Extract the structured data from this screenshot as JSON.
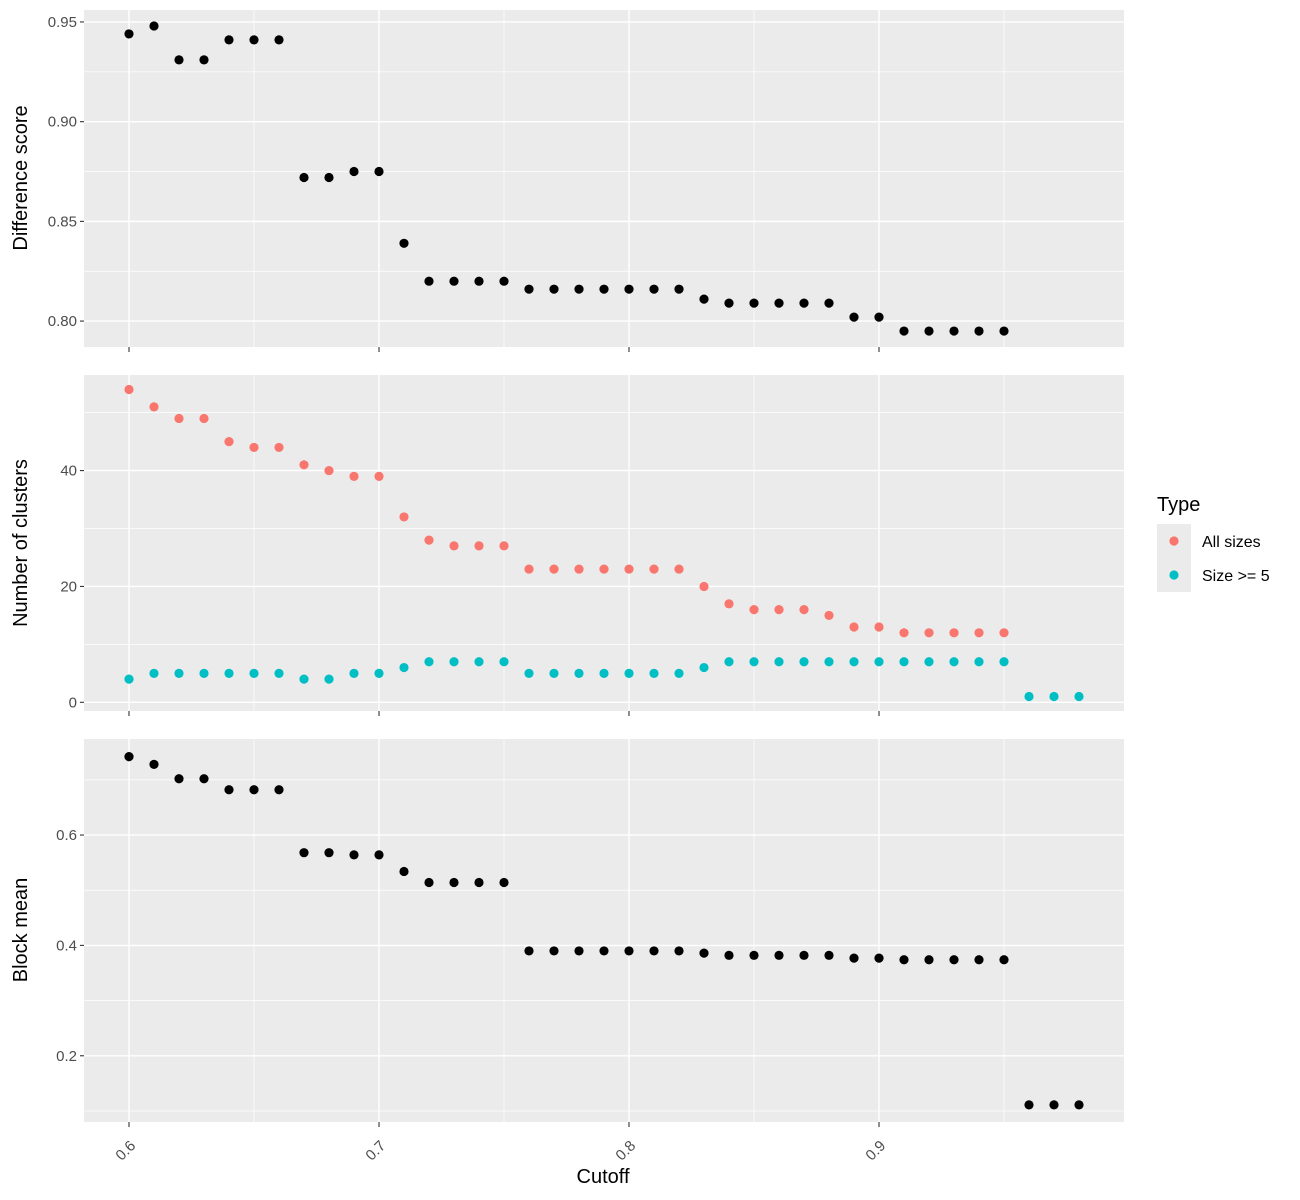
{
  "chart_data": [
    {
      "type": "scatter",
      "panel": "top",
      "ylabel": "Difference score",
      "xlim": [
        0.582,
        0.998
      ],
      "ylim": [
        0.787,
        0.956
      ],
      "y_ticks": [
        "0.80",
        "0.85",
        "0.90",
        "0.95"
      ],
      "grid": true,
      "series": [
        {
          "color": "#000000",
          "x": [
            0.6,
            0.61,
            0.62,
            0.63,
            0.64,
            0.65,
            0.66,
            0.67,
            0.68,
            0.69,
            0.7,
            0.71,
            0.72,
            0.73,
            0.74,
            0.75,
            0.76,
            0.77,
            0.78,
            0.79,
            0.8,
            0.81,
            0.82,
            0.83,
            0.84,
            0.85,
            0.86,
            0.87,
            0.88,
            0.89,
            0.9,
            0.91,
            0.92,
            0.93,
            0.94,
            0.95
          ],
          "y": [
            0.944,
            0.948,
            0.931,
            0.931,
            0.941,
            0.941,
            0.941,
            0.872,
            0.872,
            0.875,
            0.875,
            0.839,
            0.82,
            0.82,
            0.82,
            0.82,
            0.816,
            0.816,
            0.816,
            0.816,
            0.816,
            0.816,
            0.816,
            0.811,
            0.809,
            0.809,
            0.809,
            0.809,
            0.809,
            0.802,
            0.802,
            0.795,
            0.795,
            0.795,
            0.795,
            0.795
          ]
        }
      ]
    },
    {
      "type": "scatter",
      "panel": "middle",
      "ylabel": "Number of clusters",
      "xlim": [
        0.582,
        0.998
      ],
      "ylim": [
        -1.5,
        56.5
      ],
      "y_ticks": [
        "0",
        "20",
        "40"
      ],
      "grid": true,
      "legend": {
        "title": "Type",
        "position": "right"
      },
      "series": [
        {
          "name": "All sizes",
          "color": "#F8766D",
          "x": [
            0.6,
            0.61,
            0.62,
            0.63,
            0.64,
            0.65,
            0.66,
            0.67,
            0.68,
            0.69,
            0.7,
            0.71,
            0.72,
            0.73,
            0.74,
            0.75,
            0.76,
            0.77,
            0.78,
            0.79,
            0.8,
            0.81,
            0.82,
            0.83,
            0.84,
            0.85,
            0.86,
            0.87,
            0.88,
            0.89,
            0.9,
            0.91,
            0.92,
            0.93,
            0.94,
            0.95
          ],
          "y": [
            54,
            51,
            49,
            49,
            45,
            44,
            44,
            41,
            40,
            39,
            39,
            32,
            28,
            27,
            27,
            27,
            23,
            23,
            23,
            23,
            23,
            23,
            23,
            20,
            17,
            16,
            16,
            16,
            15,
            13,
            13,
            12,
            12,
            12,
            12,
            12
          ]
        },
        {
          "name": "Size >= 5",
          "color": "#00BFC4",
          "x": [
            0.6,
            0.61,
            0.62,
            0.63,
            0.64,
            0.65,
            0.66,
            0.67,
            0.68,
            0.69,
            0.7,
            0.71,
            0.72,
            0.73,
            0.74,
            0.75,
            0.76,
            0.77,
            0.78,
            0.79,
            0.8,
            0.81,
            0.82,
            0.83,
            0.84,
            0.85,
            0.86,
            0.87,
            0.88,
            0.89,
            0.9,
            0.91,
            0.92,
            0.93,
            0.94,
            0.95,
            0.96,
            0.97,
            0.98
          ],
          "y": [
            4,
            5,
            5,
            5,
            5,
            5,
            5,
            4,
            4,
            5,
            5,
            6,
            7,
            7,
            7,
            7,
            5,
            5,
            5,
            5,
            5,
            5,
            5,
            6,
            7,
            7,
            7,
            7,
            7,
            7,
            7,
            7,
            7,
            7,
            7,
            7,
            1,
            1,
            1
          ]
        }
      ]
    },
    {
      "type": "scatter",
      "panel": "bottom",
      "ylabel": "Block mean",
      "xlabel": "Cutoff",
      "xlim": [
        0.582,
        0.998
      ],
      "ylim": [
        0.08,
        0.774
      ],
      "y_ticks": [
        "0.2",
        "0.4",
        "0.6"
      ],
      "x_ticks": [
        "0.6",
        "0.7",
        "0.8",
        "0.9"
      ],
      "grid": true,
      "series": [
        {
          "color": "#000000",
          "x": [
            0.6,
            0.61,
            0.62,
            0.63,
            0.64,
            0.65,
            0.66,
            0.67,
            0.68,
            0.69,
            0.7,
            0.71,
            0.72,
            0.73,
            0.74,
            0.75,
            0.76,
            0.77,
            0.78,
            0.79,
            0.8,
            0.81,
            0.82,
            0.83,
            0.84,
            0.85,
            0.86,
            0.87,
            0.88,
            0.89,
            0.9,
            0.91,
            0.92,
            0.93,
            0.94,
            0.95,
            0.96,
            0.97,
            0.98
          ],
          "y": [
            0.742,
            0.728,
            0.702,
            0.702,
            0.682,
            0.682,
            0.682,
            0.568,
            0.568,
            0.564,
            0.564,
            0.534,
            0.514,
            0.514,
            0.514,
            0.514,
            0.39,
            0.39,
            0.39,
            0.39,
            0.39,
            0.39,
            0.39,
            0.386,
            0.382,
            0.382,
            0.382,
            0.382,
            0.382,
            0.377,
            0.377,
            0.374,
            0.374,
            0.374,
            0.374,
            0.374,
            0.111,
            0.111,
            0.111
          ]
        }
      ]
    }
  ]
}
